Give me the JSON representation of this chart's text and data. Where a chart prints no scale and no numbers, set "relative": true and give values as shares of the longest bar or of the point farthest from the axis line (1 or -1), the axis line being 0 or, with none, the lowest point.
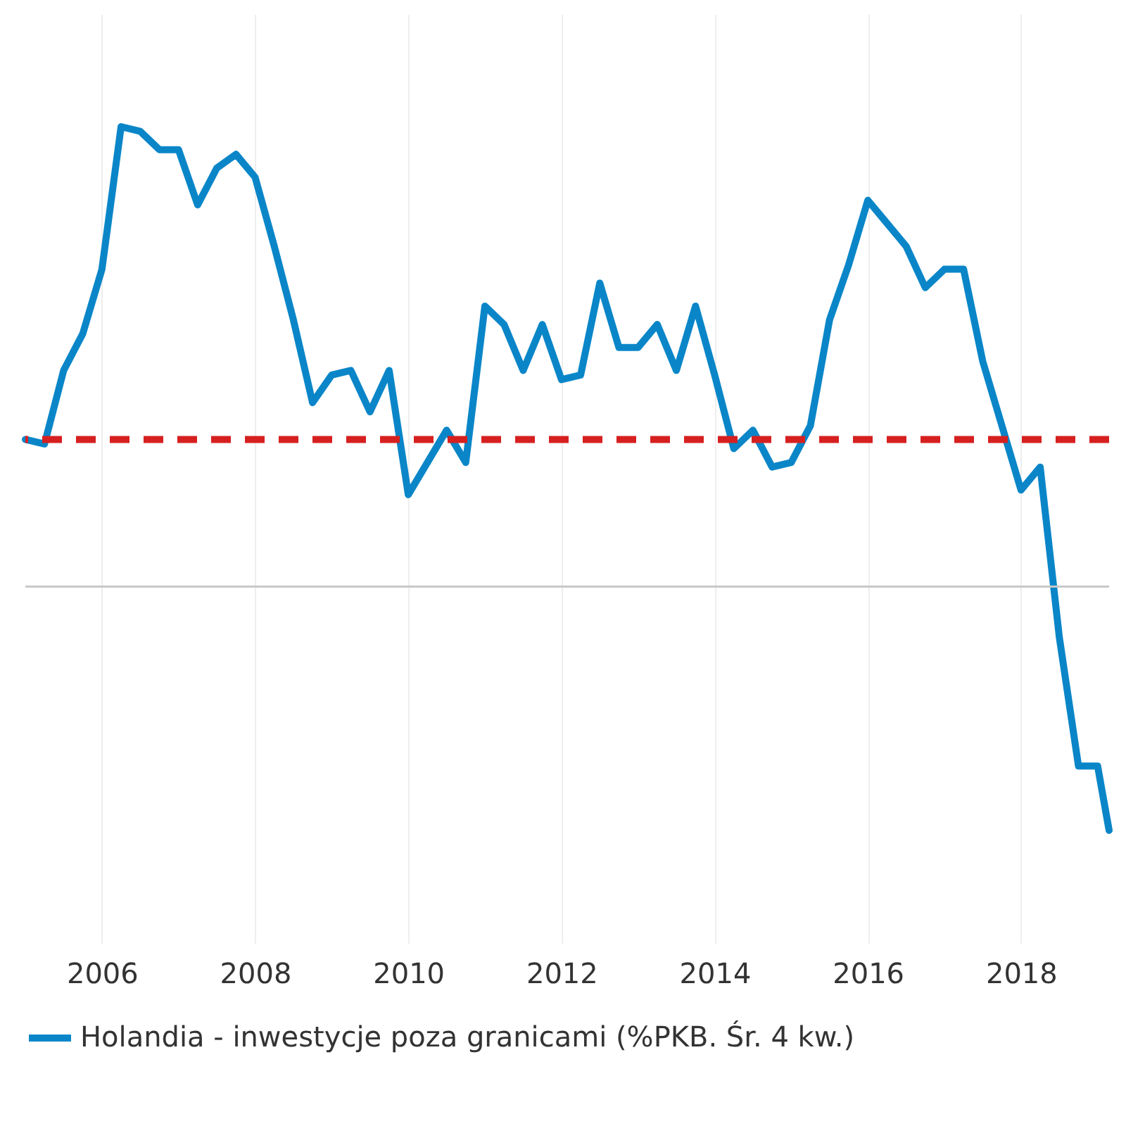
{
  "chart_data": {
    "type": "line",
    "relative": true,
    "x": [
      2005,
      2005.25,
      2005.5,
      2005.75,
      2006,
      2006.25,
      2006.5,
      2006.75,
      2007,
      2007.25,
      2007.5,
      2007.75,
      2008,
      2008.25,
      2008.5,
      2008.75,
      2009,
      2009.25,
      2009.5,
      2009.75,
      2010,
      2010.25,
      2010.5,
      2010.75,
      2011,
      2011.25,
      2011.5,
      2011.75,
      2012,
      2012.25,
      2012.5,
      2012.75,
      2013,
      2013.25,
      2013.5,
      2013.75,
      2014,
      2014.25,
      2014.5,
      2014.75,
      2015,
      2015.25,
      2015.5,
      2015.75,
      2016,
      2016.25,
      2016.5,
      2016.75,
      2017,
      2017.25,
      2017.5,
      2017.75,
      2018,
      2018.25,
      2018.5,
      2018.75,
      2019,
      2019.15
    ],
    "series": [
      {
        "name": "Holandia  - inwestycje poza granicami (%PKB. Śr. 4 kw.)",
        "color": "#0a86c8",
        "values": [
          0.32,
          0.31,
          0.47,
          0.55,
          0.69,
          1,
          0.99,
          0.95,
          0.95,
          0.83,
          0.91,
          0.94,
          0.89,
          0.74,
          0.58,
          0.4,
          0.46,
          0.47,
          0.38,
          0.47,
          0.2,
          0.27,
          0.34,
          0.27,
          0.61,
          0.57,
          0.47,
          0.57,
          0.45,
          0.46,
          0.66,
          0.52,
          0.52,
          0.57,
          0.47,
          0.61,
          0.46,
          0.3,
          0.34,
          0.26,
          0.27,
          0.35,
          0.58,
          0.7,
          0.84,
          0.79,
          0.74,
          0.65,
          0.69,
          0.69,
          0.49,
          0.35,
          0.21,
          0.26,
          -0.11,
          -0.39,
          -0.39,
          -0.53
        ]
      }
    ],
    "xlim": [
      2005,
      2019.15
    ],
    "xticks": [
      2006,
      2008,
      2010,
      2012,
      2014,
      2016,
      2018
    ],
    "ref_lines": [
      {
        "axis": "y",
        "value": 0.32,
        "color": "#d62020",
        "line_style": "dashed"
      }
    ],
    "grid": "x",
    "legend": "bottom",
    "marker": "none",
    "line_style": "solid"
  }
}
